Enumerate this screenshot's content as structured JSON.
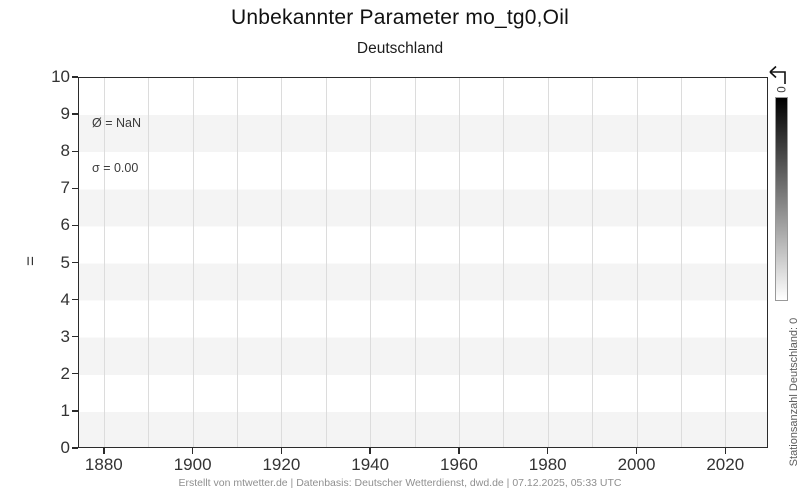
{
  "header": {
    "title": "Unbekannter Parameter mo_tg0,Oil",
    "subtitle": "Deutschland"
  },
  "chart_data": {
    "type": "line",
    "series": [],
    "title": "Unbekannter Parameter mo_tg0,Oil",
    "subtitle": "Deutschland",
    "annotation": {
      "mean": "Ø = NaN",
      "sigma": "σ = 0.00"
    },
    "x_axis": {
      "min": 1874.4,
      "max": 2029.4,
      "grid_step": 10,
      "tick_years": [
        1880,
        1900,
        1920,
        1940,
        1960,
        1980,
        2000,
        2020
      ],
      "grid": true
    },
    "y_axis": {
      "min": 0,
      "max": 10,
      "ticks": [
        0,
        1,
        2,
        3,
        4,
        5,
        6,
        7,
        8,
        9,
        10
      ],
      "label": "="
    },
    "stripe_color_even": "#ffffff",
    "stripe_color_odd": "#f4f4f4",
    "gridline_color": "#dcdcdc"
  },
  "colorbar": {
    "top_tick_label": "0",
    "label": "Stationsanzahl Deutschland: 0",
    "gradient_top": "#000000",
    "gradient_bottom": "#ffffff"
  },
  "footer": {
    "credit": "Erstellt von mtwetter.de | Datenbasis: Deutscher Wetterdienst, dwd.de | 07.12.2025, 05:33 UTC"
  }
}
